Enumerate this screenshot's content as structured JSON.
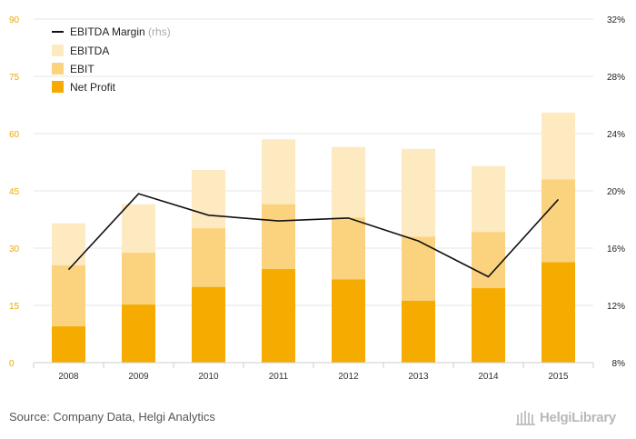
{
  "chart_data": {
    "type": "bar",
    "stacked": "overlay",
    "categories": [
      "2008",
      "2009",
      "2010",
      "2011",
      "2012",
      "2013",
      "2014",
      "2015"
    ],
    "series": [
      {
        "name": "EBITDA",
        "values": [
          36.5,
          41.5,
          50.5,
          58.5,
          56.5,
          56.0,
          51.5,
          65.5
        ],
        "color": "#fdeac0"
      },
      {
        "name": "EBIT",
        "values": [
          25.5,
          28.8,
          35.2,
          41.5,
          38.0,
          33.0,
          34.2,
          48.0
        ],
        "color": "#fbd37f"
      },
      {
        "name": "Net Profit",
        "values": [
          9.5,
          15.2,
          19.8,
          24.5,
          21.8,
          16.2,
          19.5,
          26.3
        ],
        "color": "#f5ab00"
      }
    ],
    "line_series": {
      "name": "EBITDA Margin",
      "name_suffix": "(rhs)",
      "values": [
        14.5,
        19.8,
        18.3,
        17.9,
        18.1,
        16.5,
        14.0,
        19.4
      ],
      "color": "#111111",
      "axis": "right"
    },
    "y_left": {
      "ylim": [
        0,
        90
      ],
      "ticks": [
        "0",
        "15",
        "30",
        "45",
        "60",
        "75",
        "90"
      ]
    },
    "y_right": {
      "ylim": [
        8,
        32
      ],
      "ticks": [
        "8%",
        "12%",
        "16%",
        "20%",
        "24%",
        "28%",
        "32%"
      ]
    },
    "legend_position": "top-left",
    "grid": true
  },
  "footer": {
    "source": "Source: Company Data, Helgi Analytics",
    "logo_text": "HelgiLibrary",
    "logo_icon": "library-building-icon"
  }
}
